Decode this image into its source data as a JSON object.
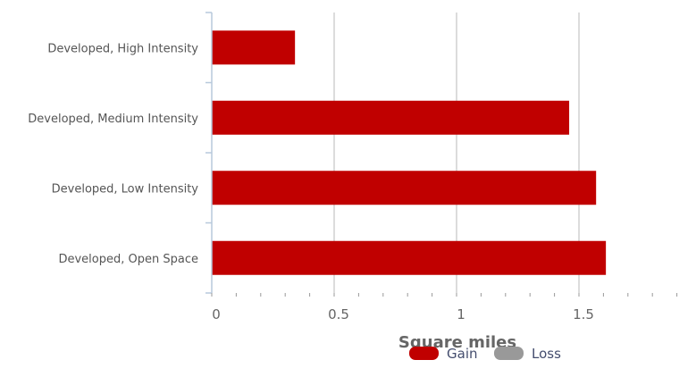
{
  "chart_data": {
    "type": "bar",
    "orientation": "horizontal",
    "categories": [
      "Developed, High Intensity",
      "Developed, Medium Intensity",
      "Developed, Low Intensity",
      "Developed, Open Space"
    ],
    "series": [
      {
        "name": "Gain",
        "color": "#c00000",
        "values": [
          0.34,
          1.46,
          1.57,
          1.61
        ]
      },
      {
        "name": "Loss",
        "color": "#999999",
        "values": [
          0,
          0,
          0,
          0
        ]
      }
    ],
    "xlabel": "Square miles",
    "ylabel": "",
    "xlim": [
      0,
      2
    ],
    "x_ticks": [
      "0",
      "0.5",
      "1",
      "1.5",
      "2"
    ],
    "grid": true,
    "legend_position": "bottom-center"
  }
}
